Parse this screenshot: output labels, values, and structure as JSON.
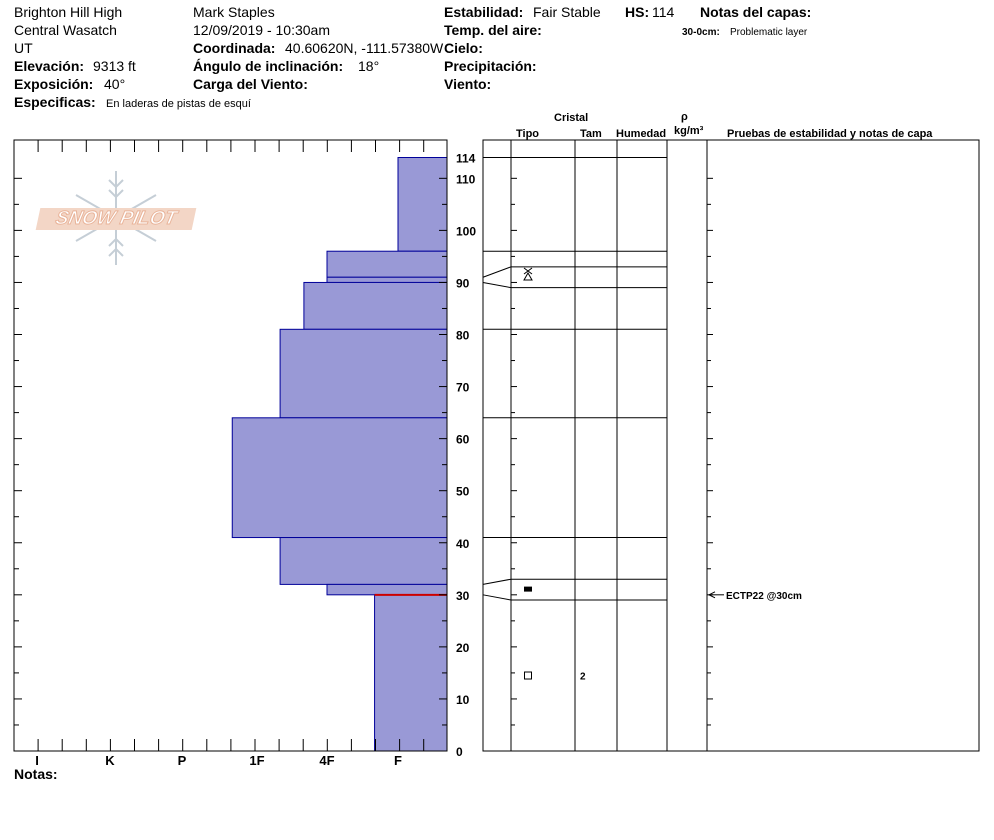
{
  "header": {
    "location": "Brighton Hill High",
    "range": "Central Wasatch",
    "state": "UT",
    "elevation_label": "Elevación:",
    "elevation_value": "9313 ft",
    "aspect_label": "Exposición:",
    "aspect_value": "40°",
    "specifics_label": "Especificas:",
    "specifics_value": "En laderas de pistas de esquí",
    "observer": "Mark Staples",
    "datetime": "12/09/2019 - 10:30am",
    "coord_label": "Coordinada:",
    "coord_value": "40.60620N, -111.57380W",
    "slope_label": "Ángulo de inclinación:",
    "slope_value": "18°",
    "windload_label": "Carga del Viento:",
    "stability_label": "Estabilidad:",
    "stability_value": "Fair Stable",
    "hs_label": "HS:",
    "hs_value": "114",
    "airtemp_label": "Temp. del aire:",
    "sky_label": "Cielo:",
    "precip_label": "Precipitación:",
    "wind_label": "Viento:",
    "layer_notes_label": "Notas del capas:",
    "layer_note_depth": "30-0cm:",
    "layer_note_text": "Problematic layer"
  },
  "columns": {
    "crystal": "Cristal",
    "type": "Tipo",
    "size": "Tam",
    "moisture": "Humedad",
    "rho": "ρ",
    "density_unit": "kg/m³",
    "tests": "Pruebas de estabilidad y notas de capa"
  },
  "logo_text": "SNOW PILOT",
  "notes_label": "Notas:",
  "colors": {
    "layer_fill": "#9999d6",
    "layer_stroke": "#000099",
    "weak_layer": "#cc0000"
  },
  "chart_data": {
    "type": "bar",
    "orientation": "horizontal",
    "description_axis_x": [
      "I",
      "K",
      "P",
      "1F",
      "4F",
      "F"
    ],
    "ylim": [
      0,
      114
    ],
    "yticks": [
      0,
      10,
      20,
      30,
      40,
      50,
      60,
      70,
      80,
      90,
      100,
      110,
      114
    ],
    "layers": [
      {
        "top": 114,
        "bottom": 96,
        "hardness": "F"
      },
      {
        "top": 96,
        "bottom": 91,
        "hardness": "4F"
      },
      {
        "top": 91,
        "bottom": 90,
        "hardness": "4F"
      },
      {
        "top": 90,
        "bottom": 81,
        "hardness": "4F-"
      },
      {
        "top": 81,
        "bottom": 64,
        "hardness": "1F+"
      },
      {
        "top": 64,
        "bottom": 41,
        "hardness": "1F-"
      },
      {
        "top": 41,
        "bottom": 32,
        "hardness": "1F+"
      },
      {
        "top": 32,
        "bottom": 30,
        "hardness": "4F"
      },
      {
        "top": 30,
        "bottom": 0,
        "hardness": "F+"
      }
    ],
    "hardness_index": {
      "F": 5,
      "4F": 4,
      "4F-": 3.67,
      "1F+": 3.33,
      "1F-": 2.67,
      "F+": 4.67
    },
    "structure_boundaries": [
      114,
      96,
      93,
      89,
      81,
      64,
      41,
      33,
      29
    ],
    "crystals": [
      {
        "depth": 91.5,
        "symbol": "precipitation-particles-decomposing"
      },
      {
        "depth": 31,
        "symbol": "faceted-rounded"
      },
      {
        "depth": 14.5,
        "symbol": "faceted",
        "size": "2"
      }
    ],
    "weak_layer_depth": 30,
    "tests": [
      {
        "depth": 30,
        "text": "ECTP22 @30cm"
      }
    ]
  }
}
